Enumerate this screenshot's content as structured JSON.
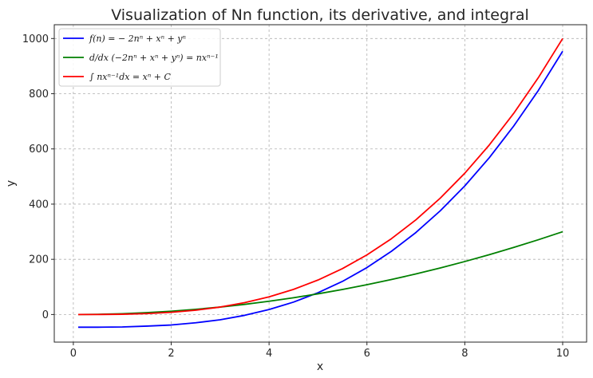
{
  "chart_data": {
    "type": "line",
    "title": "Visualization of Nn function, its derivative, and integral",
    "xlabel": "x",
    "ylabel": "y",
    "xlim": [
      -0.3895,
      10.4895
    ],
    "ylim": [
      -100,
      1050
    ],
    "xticks": [
      "0",
      "2",
      "4",
      "6",
      "8",
      "10"
    ],
    "yticks": [
      "0",
      "200",
      "400",
      "600",
      "800",
      "1000"
    ],
    "grid": true,
    "legend_position": "top-left",
    "x": [
      0.1,
      0.5,
      1,
      1.5,
      2,
      2.5,
      3,
      3.5,
      4,
      4.5,
      5,
      5.5,
      6,
      6.5,
      7,
      7.5,
      8,
      8.5,
      9,
      9.5,
      10
    ],
    "series": [
      {
        "name": "f(n) = − 2nⁿ + xⁿ + yⁿ",
        "color": "#0000ff",
        "values": [
          -46,
          -46,
          -45,
          -42,
          -38,
          -30,
          -19,
          -3,
          18,
          45,
          79,
          120,
          170,
          229,
          297,
          376,
          466,
          568,
          683,
          811,
          954
        ]
      },
      {
        "name": "d/dx (−2nⁿ + xⁿ + yⁿ) = nxⁿ⁻¹",
        "color": "#008000",
        "values": [
          0.03,
          0.75,
          3,
          6.75,
          12,
          18.75,
          27,
          36.75,
          48,
          60.75,
          75,
          90.75,
          108,
          126.75,
          147,
          168.75,
          192,
          216.75,
          243,
          270.75,
          300
        ]
      },
      {
        "name": "∫ nxⁿ⁻¹dx = xⁿ + C",
        "color": "#ff0000",
        "values": [
          0.001,
          0.125,
          1,
          3.375,
          8,
          15.625,
          27,
          42.875,
          64,
          91.125,
          125,
          166.375,
          216,
          274.625,
          343,
          421.875,
          512,
          614.125,
          729,
          857.375,
          1000
        ]
      }
    ]
  }
}
